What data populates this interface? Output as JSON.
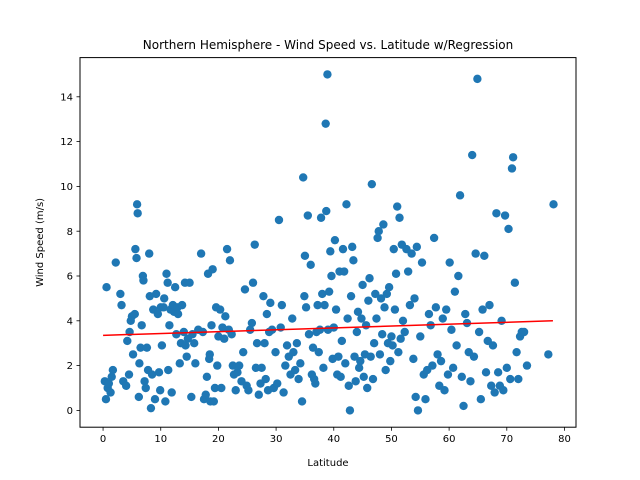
{
  "chart_data": {
    "type": "scatter",
    "title": "Northern Hemisphere - Wind Speed vs. Latitude w/Regression",
    "xlabel": "Latitude",
    "ylabel": "Wind Speed (m/s)",
    "xlim": [
      -4,
      82
    ],
    "ylim": [
      -0.75,
      15.75
    ],
    "xticks": [
      0,
      10,
      20,
      30,
      40,
      50,
      60,
      70,
      80
    ],
    "yticks": [
      0,
      2,
      4,
      6,
      8,
      10,
      12,
      14
    ],
    "grid": false,
    "point_color": "#1f77b4",
    "regression": {
      "x": [
        0,
        78
      ],
      "y": [
        3.35,
        4.0
      ],
      "color": "#ff0000"
    },
    "points": [
      [
        0.3,
        1.3
      ],
      [
        0.5,
        0.5
      ],
      [
        0.6,
        5.5
      ],
      [
        0.8,
        1.0
      ],
      [
        1.0,
        1.2
      ],
      [
        1.3,
        0.8
      ],
      [
        1.5,
        1.5
      ],
      [
        1.7,
        1.8
      ],
      [
        2.2,
        6.6
      ],
      [
        3.0,
        5.2
      ],
      [
        3.2,
        4.7
      ],
      [
        3.5,
        1.3
      ],
      [
        4.0,
        1.1
      ],
      [
        4.2,
        3.1
      ],
      [
        4.5,
        1.6
      ],
      [
        4.6,
        3.5
      ],
      [
        4.8,
        4.0
      ],
      [
        5.0,
        4.2
      ],
      [
        5.2,
        2.5
      ],
      [
        5.5,
        4.3
      ],
      [
        5.6,
        7.2
      ],
      [
        5.8,
        6.8
      ],
      [
        5.9,
        9.2
      ],
      [
        6.0,
        8.8
      ],
      [
        6.2,
        0.6
      ],
      [
        6.3,
        2.1
      ],
      [
        6.5,
        2.8
      ],
      [
        6.7,
        3.8
      ],
      [
        6.9,
        6.0
      ],
      [
        7.0,
        5.8
      ],
      [
        7.2,
        1.3
      ],
      [
        7.4,
        1.0
      ],
      [
        7.6,
        2.8
      ],
      [
        7.8,
        1.8
      ],
      [
        8.0,
        7.0
      ],
      [
        8.1,
        5.1
      ],
      [
        8.3,
        0.1
      ],
      [
        8.5,
        1.6
      ],
      [
        8.7,
        4.5
      ],
      [
        9.0,
        0.5
      ],
      [
        9.2,
        5.2
      ],
      [
        9.5,
        4.3
      ],
      [
        9.7,
        1.7
      ],
      [
        9.9,
        0.9
      ],
      [
        10.0,
        4.6
      ],
      [
        10.2,
        2.9
      ],
      [
        10.5,
        4.6
      ],
      [
        10.6,
        5.0
      ],
      [
        10.8,
        0.4
      ],
      [
        11.0,
        6.1
      ],
      [
        11.2,
        5.7
      ],
      [
        11.3,
        1.8
      ],
      [
        11.5,
        3.8
      ],
      [
        11.7,
        4.5
      ],
      [
        11.9,
        0.8
      ],
      [
        12.1,
        4.7
      ],
      [
        12.3,
        4.4
      ],
      [
        12.5,
        5.5
      ],
      [
        12.7,
        3.4
      ],
      [
        12.9,
        4.6
      ],
      [
        13.0,
        4.3
      ],
      [
        13.3,
        2.1
      ],
      [
        13.5,
        3.0
      ],
      [
        13.7,
        4.7
      ],
      [
        14.0,
        3.5
      ],
      [
        14.2,
        5.7
      ],
      [
        14.3,
        2.9
      ],
      [
        14.5,
        2.4
      ],
      [
        14.7,
        3.2
      ],
      [
        15.0,
        5.7
      ],
      [
        15.3,
        0.6
      ],
      [
        15.5,
        3.4
      ],
      [
        15.8,
        3.0
      ],
      [
        16.0,
        2.1
      ],
      [
        16.5,
        3.6
      ],
      [
        17.0,
        7.0
      ],
      [
        17.3,
        3.5
      ],
      [
        17.5,
        0.5
      ],
      [
        17.8,
        0.7
      ],
      [
        18.0,
        1.5
      ],
      [
        18.2,
        6.1
      ],
      [
        18.4,
        2.3
      ],
      [
        18.5,
        2.5
      ],
      [
        18.6,
        0.4
      ],
      [
        18.8,
        3.8
      ],
      [
        19.0,
        6.3
      ],
      [
        19.2,
        0.4
      ],
      [
        19.4,
        1.0
      ],
      [
        19.6,
        4.6
      ],
      [
        19.8,
        2.0
      ],
      [
        20.0,
        3.3
      ],
      [
        20.3,
        4.5
      ],
      [
        20.5,
        1.0
      ],
      [
        20.7,
        3.7
      ],
      [
        21.0,
        3.2
      ],
      [
        21.2,
        4.2
      ],
      [
        21.5,
        7.2
      ],
      [
        21.8,
        3.6
      ],
      [
        22.0,
        6.7
      ],
      [
        22.3,
        3.4
      ],
      [
        22.5,
        2.0
      ],
      [
        22.7,
        1.6
      ],
      [
        23.0,
        0.9
      ],
      [
        23.3,
        1.7
      ],
      [
        23.6,
        2.0
      ],
      [
        24.0,
        1.3
      ],
      [
        24.3,
        2.6
      ],
      [
        24.6,
        5.4
      ],
      [
        24.9,
        1.1
      ],
      [
        25.2,
        0.9
      ],
      [
        25.5,
        3.6
      ],
      [
        25.8,
        3.9
      ],
      [
        26.0,
        5.7
      ],
      [
        26.3,
        7.4
      ],
      [
        26.5,
        1.9
      ],
      [
        26.7,
        3.0
      ],
      [
        27.0,
        0.7
      ],
      [
        27.3,
        1.2
      ],
      [
        27.5,
        1.9
      ],
      [
        27.8,
        5.1
      ],
      [
        28.0,
        3.0
      ],
      [
        28.2,
        1.4
      ],
      [
        28.4,
        4.3
      ],
      [
        28.6,
        0.9
      ],
      [
        28.8,
        3.5
      ],
      [
        29.0,
        4.8
      ],
      [
        29.3,
        3.6
      ],
      [
        29.6,
        1.0
      ],
      [
        29.9,
        2.6
      ],
      [
        30.2,
        1.2
      ],
      [
        30.5,
        8.5
      ],
      [
        30.8,
        3.7
      ],
      [
        31.0,
        4.7
      ],
      [
        31.3,
        0.8
      ],
      [
        31.6,
        2.0
      ],
      [
        31.9,
        2.9
      ],
      [
        32.2,
        2.4
      ],
      [
        32.5,
        1.6
      ],
      [
        32.8,
        4.1
      ],
      [
        33.0,
        2.6
      ],
      [
        33.3,
        1.8
      ],
      [
        33.6,
        3.0
      ],
      [
        33.9,
        1.4
      ],
      [
        34.2,
        2.1
      ],
      [
        34.5,
        0.4
      ],
      [
        34.7,
        10.4
      ],
      [
        34.9,
        5.1
      ],
      [
        35.0,
        6.9
      ],
      [
        35.2,
        4.6
      ],
      [
        35.5,
        8.7
      ],
      [
        35.7,
        3.4
      ],
      [
        36.0,
        6.5
      ],
      [
        36.2,
        1.6
      ],
      [
        36.4,
        2.8
      ],
      [
        36.6,
        1.4
      ],
      [
        36.8,
        1.2
      ],
      [
        37.0,
        3.5
      ],
      [
        37.2,
        4.7
      ],
      [
        37.4,
        2.6
      ],
      [
        37.6,
        3.6
      ],
      [
        37.8,
        8.6
      ],
      [
        38.0,
        5.2
      ],
      [
        38.2,
        1.9
      ],
      [
        38.4,
        4.7
      ],
      [
        38.6,
        12.8
      ],
      [
        38.7,
        8.9
      ],
      [
        38.9,
        15.0
      ],
      [
        39.0,
        3.6
      ],
      [
        39.2,
        5.3
      ],
      [
        39.4,
        7.1
      ],
      [
        39.6,
        6.0
      ],
      [
        39.8,
        2.3
      ],
      [
        40.0,
        3.7
      ],
      [
        40.2,
        7.6
      ],
      [
        40.4,
        4.5
      ],
      [
        40.6,
        1.6
      ],
      [
        40.8,
        2.4
      ],
      [
        41.0,
        6.2
      ],
      [
        41.2,
        1.5
      ],
      [
        41.4,
        3.1
      ],
      [
        41.6,
        7.2
      ],
      [
        41.8,
        6.2
      ],
      [
        42.0,
        2.1
      ],
      [
        42.2,
        9.2
      ],
      [
        42.4,
        4.1
      ],
      [
        42.6,
        1.1
      ],
      [
        42.8,
        0.0
      ],
      [
        43.0,
        5.1
      ],
      [
        43.2,
        7.3
      ],
      [
        43.4,
        6.7
      ],
      [
        43.6,
        2.4
      ],
      [
        43.8,
        1.3
      ],
      [
        44.0,
        3.5
      ],
      [
        44.2,
        4.4
      ],
      [
        44.4,
        1.9
      ],
      [
        44.6,
        2.2
      ],
      [
        44.8,
        4.1
      ],
      [
        45.0,
        5.6
      ],
      [
        45.2,
        1.5
      ],
      [
        45.4,
        2.5
      ],
      [
        45.6,
        3.8
      ],
      [
        45.8,
        1.0
      ],
      [
        46.0,
        4.9
      ],
      [
        46.2,
        5.9
      ],
      [
        46.4,
        2.4
      ],
      [
        46.6,
        10.1
      ],
      [
        46.8,
        1.4
      ],
      [
        47.0,
        3.0
      ],
      [
        47.2,
        5.2
      ],
      [
        47.4,
        4.1
      ],
      [
        47.6,
        7.7
      ],
      [
        47.8,
        8.0
      ],
      [
        48.0,
        2.5
      ],
      [
        48.2,
        5.0
      ],
      [
        48.4,
        3.4
      ],
      [
        48.6,
        8.3
      ],
      [
        48.8,
        4.6
      ],
      [
        49.0,
        1.8
      ],
      [
        49.2,
        5.2
      ],
      [
        49.4,
        3.0
      ],
      [
        49.6,
        5.5
      ],
      [
        49.8,
        2.2
      ],
      [
        50.0,
        3.3
      ],
      [
        50.2,
        2.9
      ],
      [
        50.4,
        7.2
      ],
      [
        50.6,
        4.5
      ],
      [
        50.8,
        6.1
      ],
      [
        51.0,
        9.1
      ],
      [
        51.2,
        2.6
      ],
      [
        51.4,
        8.6
      ],
      [
        51.6,
        3.2
      ],
      [
        51.8,
        7.4
      ],
      [
        52.0,
        4.0
      ],
      [
        52.3,
        3.5
      ],
      [
        52.6,
        7.2
      ],
      [
        52.9,
        6.2
      ],
      [
        53.2,
        4.7
      ],
      [
        53.5,
        7.0
      ],
      [
        53.8,
        2.3
      ],
      [
        54.0,
        5.0
      ],
      [
        54.2,
        0.6
      ],
      [
        54.4,
        7.3
      ],
      [
        54.6,
        0.0
      ],
      [
        55.0,
        3.3
      ],
      [
        55.3,
        6.6
      ],
      [
        55.6,
        1.6
      ],
      [
        55.9,
        0.5
      ],
      [
        56.2,
        1.8
      ],
      [
        56.5,
        4.3
      ],
      [
        56.8,
        3.8
      ],
      [
        57.1,
        2.0
      ],
      [
        57.4,
        7.7
      ],
      [
        57.7,
        4.6
      ],
      [
        58.0,
        2.5
      ],
      [
        58.3,
        1.1
      ],
      [
        58.6,
        2.2
      ],
      [
        58.9,
        4.1
      ],
      [
        59.2,
        0.9
      ],
      [
        59.5,
        4.5
      ],
      [
        59.8,
        1.6
      ],
      [
        60.1,
        6.6
      ],
      [
        60.4,
        3.6
      ],
      [
        60.7,
        1.9
      ],
      [
        61.0,
        5.3
      ],
      [
        61.3,
        2.9
      ],
      [
        61.6,
        6.0
      ],
      [
        61.9,
        9.6
      ],
      [
        62.2,
        1.5
      ],
      [
        62.5,
        0.2
      ],
      [
        62.8,
        4.3
      ],
      [
        63.1,
        3.9
      ],
      [
        63.4,
        2.6
      ],
      [
        63.7,
        1.3
      ],
      [
        64.0,
        11.4
      ],
      [
        64.3,
        2.4
      ],
      [
        64.6,
        7.0
      ],
      [
        64.9,
        14.8
      ],
      [
        65.2,
        3.5
      ],
      [
        65.5,
        0.5
      ],
      [
        65.8,
        4.5
      ],
      [
        66.1,
        6.9
      ],
      [
        66.4,
        1.7
      ],
      [
        66.7,
        3.1
      ],
      [
        67.0,
        4.7
      ],
      [
        67.3,
        1.1
      ],
      [
        67.6,
        2.9
      ],
      [
        67.9,
        0.8
      ],
      [
        68.2,
        8.8
      ],
      [
        68.5,
        1.7
      ],
      [
        68.8,
        1.1
      ],
      [
        69.1,
        4.0
      ],
      [
        69.4,
        0.9
      ],
      [
        69.7,
        8.7
      ],
      [
        70.0,
        1.9
      ],
      [
        70.3,
        8.1
      ],
      [
        70.6,
        1.4
      ],
      [
        70.9,
        10.8
      ],
      [
        71.1,
        11.3
      ],
      [
        71.4,
        5.7
      ],
      [
        71.7,
        2.6
      ],
      [
        72.0,
        1.4
      ],
      [
        72.3,
        3.3
      ],
      [
        72.6,
        3.5
      ],
      [
        73.0,
        3.5
      ],
      [
        73.5,
        2.0
      ],
      [
        77.2,
        2.5
      ],
      [
        78.1,
        9.2
      ]
    ]
  }
}
